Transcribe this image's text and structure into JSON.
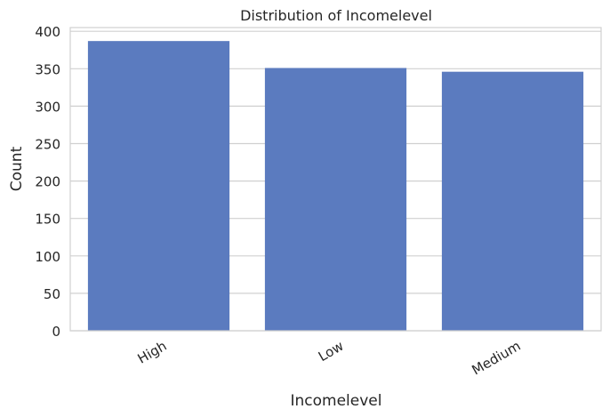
{
  "chart_data": {
    "type": "bar",
    "title": "Distribution of Incomelevel",
    "xlabel": "Incomelevel",
    "ylabel": "Count",
    "categories": [
      "High",
      "Low",
      "Medium"
    ],
    "values": [
      387,
      351,
      346
    ],
    "ylim": [
      0,
      405
    ],
    "yticks": [
      0,
      50,
      100,
      150,
      200,
      250,
      300,
      350,
      400
    ],
    "grid": "horizontal",
    "bar_color": "#5b7bbf",
    "grid_color": "#d0d0d0",
    "frame_color": "#d0d0d0"
  }
}
